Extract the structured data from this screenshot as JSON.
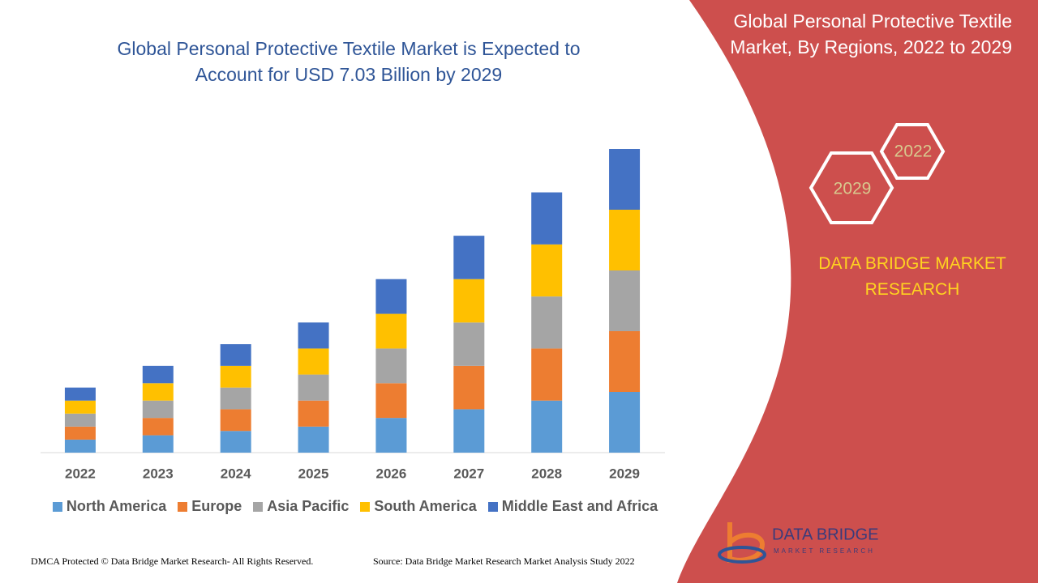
{
  "chart_data": {
    "type": "stacked-bar",
    "title": "Global Personal Protective Textile Market is Expected to Account for USD 7.03 Billion by 2029",
    "categories": [
      "2022",
      "2023",
      "2024",
      "2025",
      "2026",
      "2027",
      "2028",
      "2029"
    ],
    "series": [
      {
        "name": "North America",
        "color": "#5b9bd5",
        "values": [
          0.3,
          0.4,
          0.5,
          0.6,
          0.8,
          1.0,
          1.2,
          1.4
        ]
      },
      {
        "name": "Europe",
        "color": "#ed7d31",
        "values": [
          0.3,
          0.4,
          0.5,
          0.6,
          0.8,
          1.0,
          1.2,
          1.4
        ]
      },
      {
        "name": "Asia Pacific",
        "color": "#a5a5a5",
        "values": [
          0.3,
          0.4,
          0.5,
          0.6,
          0.8,
          1.0,
          1.2,
          1.4
        ]
      },
      {
        "name": "South America",
        "color": "#ffc000",
        "values": [
          0.3,
          0.4,
          0.5,
          0.6,
          0.8,
          1.0,
          1.2,
          1.4
        ]
      },
      {
        "name": "Middle East and Africa",
        "color": "#4472c4",
        "values": [
          0.3,
          0.4,
          0.5,
          0.6,
          0.8,
          1.0,
          1.2,
          1.4
        ]
      }
    ],
    "legend": "bottom"
  },
  "panel": {
    "title": "Global Personal Protective Textile Market, By Regions, 2022 to 2029",
    "hexagons": [
      "2022",
      "2029"
    ],
    "brand": "DATA BRIDGE MARKET RESEARCH"
  },
  "logo": {
    "name": "DATA BRIDGE",
    "tagline": "MARKET RESEARCH"
  },
  "footer": {
    "left": "DMCA Protected © Data Bridge Market Research- All Rights Reserved.",
    "right": "Source: Data Bridge Market Research Market Analysis Study 2022"
  }
}
